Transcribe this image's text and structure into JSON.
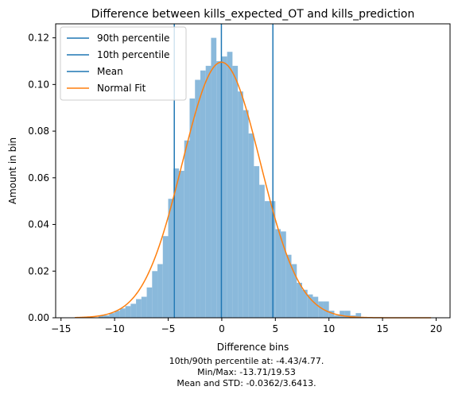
{
  "chart_data": {
    "type": "histogram",
    "title": "Difference between kills_expected_OT and kills_prediction",
    "xlabel": "Difference bins",
    "ylabel": "Amount in bin",
    "xlim": [
      -15.5,
      21.3
    ],
    "ylim": [
      0,
      0.126
    ],
    "x_ticks": [
      -15,
      -10,
      -5,
      0,
      5,
      10,
      15,
      20
    ],
    "y_ticks": [
      0.0,
      0.02,
      0.04,
      0.06,
      0.08,
      0.1,
      0.12
    ],
    "x_tick_labels": [
      "−15",
      "−10",
      "−5",
      "0",
      "5",
      "10",
      "15",
      "20"
    ],
    "y_tick_labels": [
      "0.00",
      "0.02",
      "0.04",
      "0.06",
      "0.08",
      "0.10",
      "0.12"
    ],
    "grid": false,
    "legend_position": "top-left",
    "colors": {
      "bars": "#8ab9db",
      "vertical_lines": "#1f77b4",
      "normal_fit": "#ff7f0e"
    },
    "histogram": {
      "bin_width": 0.5,
      "bins": [
        {
          "x0": -11.5,
          "value": 0.001
        },
        {
          "x0": -11.0,
          "value": 0.001
        },
        {
          "x0": -10.5,
          "value": 0.002
        },
        {
          "x0": -10.0,
          "value": 0.003
        },
        {
          "x0": -9.5,
          "value": 0.004
        },
        {
          "x0": -9.0,
          "value": 0.005
        },
        {
          "x0": -8.5,
          "value": 0.006
        },
        {
          "x0": -8.0,
          "value": 0.008
        },
        {
          "x0": -7.5,
          "value": 0.009
        },
        {
          "x0": -7.0,
          "value": 0.013
        },
        {
          "x0": -6.5,
          "value": 0.02
        },
        {
          "x0": -6.0,
          "value": 0.023
        },
        {
          "x0": -5.5,
          "value": 0.035
        },
        {
          "x0": -5.0,
          "value": 0.051
        },
        {
          "x0": -4.5,
          "value": 0.064
        },
        {
          "x0": -4.0,
          "value": 0.063
        },
        {
          "x0": -3.5,
          "value": 0.076
        },
        {
          "x0": -3.0,
          "value": 0.094
        },
        {
          "x0": -2.5,
          "value": 0.102
        },
        {
          "x0": -2.0,
          "value": 0.106
        },
        {
          "x0": -1.5,
          "value": 0.108
        },
        {
          "x0": -1.0,
          "value": 0.12
        },
        {
          "x0": -0.5,
          "value": 0.11
        },
        {
          "x0": 0.0,
          "value": 0.112
        },
        {
          "x0": 0.5,
          "value": 0.114
        },
        {
          "x0": 1.0,
          "value": 0.108
        },
        {
          "x0": 1.5,
          "value": 0.097
        },
        {
          "x0": 2.0,
          "value": 0.089
        },
        {
          "x0": 2.5,
          "value": 0.079
        },
        {
          "x0": 3.0,
          "value": 0.065
        },
        {
          "x0": 3.5,
          "value": 0.057
        },
        {
          "x0": 4.0,
          "value": 0.05
        },
        {
          "x0": 4.5,
          "value": 0.05
        },
        {
          "x0": 5.0,
          "value": 0.038
        },
        {
          "x0": 5.5,
          "value": 0.037
        },
        {
          "x0": 6.0,
          "value": 0.027
        },
        {
          "x0": 6.5,
          "value": 0.023
        },
        {
          "x0": 7.0,
          "value": 0.015
        },
        {
          "x0": 7.5,
          "value": 0.012
        },
        {
          "x0": 8.0,
          "value": 0.01
        },
        {
          "x0": 8.5,
          "value": 0.009
        },
        {
          "x0": 9.0,
          "value": 0.007
        },
        {
          "x0": 9.5,
          "value": 0.007
        },
        {
          "x0": 10.0,
          "value": 0.003
        },
        {
          "x0": 10.5,
          "value": 0.001
        },
        {
          "x0": 11.0,
          "value": 0.003
        },
        {
          "x0": 11.5,
          "value": 0.003
        },
        {
          "x0": 12.0,
          "value": 0.001
        },
        {
          "x0": 12.5,
          "value": 0.002
        }
      ]
    },
    "vertical_lines": [
      {
        "name": "90th percentile",
        "x": 4.77
      },
      {
        "name": "10th percentile",
        "x": -4.43
      },
      {
        "name": "Mean",
        "x": -0.0362
      }
    ],
    "normal_fit": {
      "name": "Normal Fit",
      "mean": -0.0362,
      "std": 3.6413,
      "x_range": [
        -13.71,
        19.53
      ]
    },
    "legend": [
      "90th percentile",
      "10th percentile",
      "Mean",
      "Normal Fit"
    ],
    "annotations": [
      "10th/90th percentile at: -4.43/4.77.",
      "Min/Max: -13.71/19.53",
      "Mean and STD: -0.0362/3.6413."
    ]
  }
}
